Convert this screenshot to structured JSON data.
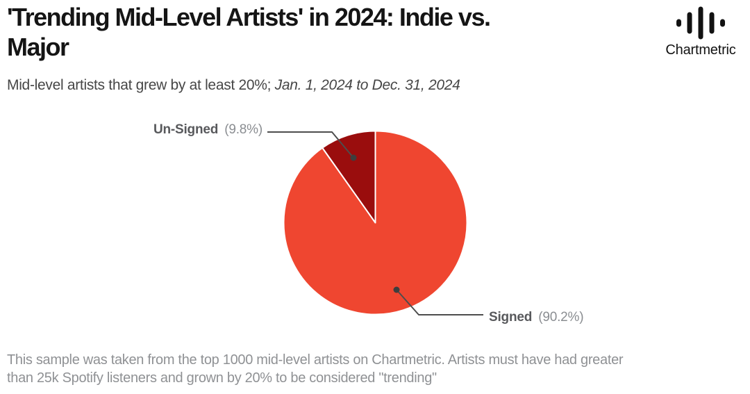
{
  "header": {
    "title": "'Trending Mid-Level Artists' in 2024: Indie vs. Major",
    "title_lines": [
      "'Trending Mid-Level Artists' in 2024: Indie vs.",
      "Major"
    ]
  },
  "logo": {
    "wordmark": "Chartmetric",
    "icon": "waveform-icon",
    "color": "#121212"
  },
  "subtitle": {
    "lead": "Mid-level artists that grew by at least 20%; ",
    "date_range": "Jan. 1, 2024 to Dec. 31, 2024"
  },
  "chart_data": {
    "type": "pie",
    "title": "'Trending Mid-Level Artists' in 2024: Indie vs. Major",
    "slices": [
      {
        "label": "Signed",
        "value": 90.2,
        "pct_display": "(90.2%)",
        "color": "#EF4630"
      },
      {
        "label": "Un-Signed",
        "value": 9.8,
        "pct_display": "(9.8%)",
        "color": "#9A0D0D"
      }
    ],
    "start_angle_deg": 0,
    "direction": "clockwise",
    "slice_border_color": "#FFFFFF",
    "legend": "callout-labels-with-leader-lines"
  },
  "footnote": {
    "text": "This sample was taken from the top 1000 mid-level artists on Chartmetric. Artists must have had greater than 25k Spotify listeners and grown by 20% to be considered \"trending\"",
    "lines": [
      "This sample was taken from the top 1000 mid-level artists on Chartmetric. Artists must have had greater",
      "than 25k Spotify listeners and grown by 20% to be considered \"trending\""
    ]
  },
  "colors": {
    "background": "#FFFFFF",
    "title_text": "#151515",
    "subtitle_text": "#464646",
    "label_name_text": "#58595C",
    "label_pct_text": "#8A8D91",
    "leader_line": "#4D4D4D",
    "footnote_text": "#8F9194"
  }
}
